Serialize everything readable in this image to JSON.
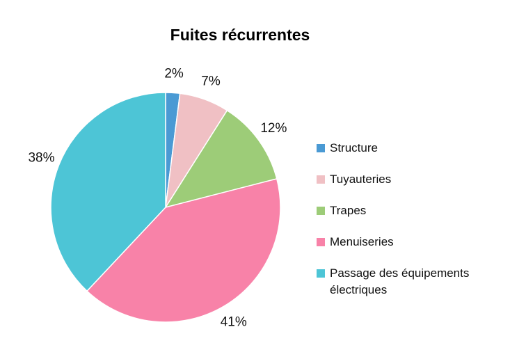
{
  "chart_data": {
    "type": "pie",
    "title": "Fuites récurrentes",
    "categories": [
      "Structure",
      "Tuyauteries",
      "Trapes",
      "Menuiseries",
      "Passage des équipements électriques"
    ],
    "values": [
      2,
      7,
      12,
      41,
      38
    ],
    "value_labels": [
      "2%",
      "7%",
      "12%",
      "41%",
      "38%"
    ],
    "colors": [
      "#4a9ad4",
      "#f0c0c4",
      "#9dcc78",
      "#f882a8",
      "#4dc5d6"
    ],
    "legend": "right"
  }
}
